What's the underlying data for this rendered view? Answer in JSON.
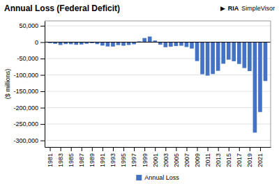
{
  "chart_data": {
    "type": "bar",
    "title": "Annual Loss (Federal Deficit)",
    "y_label": "($ millions)",
    "annotations": [
      "▶",
      "RIA",
      "SimpleVisor"
    ],
    "x": [
      1981,
      1982,
      1983,
      1984,
      1985,
      1986,
      1987,
      1988,
      1989,
      1990,
      1991,
      1992,
      1993,
      1994,
      1995,
      1996,
      1997,
      1998,
      1999,
      2000,
      2001,
      2002,
      2003,
      2004,
      2005,
      2006,
      2007,
      2008,
      2009,
      2010,
      2011,
      2012,
      2013,
      2014,
      2015,
      2016,
      2017,
      2018,
      2019,
      2020,
      2021,
      2022
    ],
    "series": [
      {
        "name": "Annual Loss",
        "color": "#4472C4",
        "values": [
          -2800,
          -4900,
          -8400,
          -5700,
          -6200,
          -7800,
          -7000,
          -4700,
          -3100,
          -5900,
          -10200,
          -13100,
          -13300,
          -8700,
          -10700,
          -8500,
          -6300,
          2600,
          12600,
          17200,
          5000,
          -7600,
          -15300,
          -13500,
          -11800,
          -10700,
          -14700,
          -19400,
          -57600,
          -97900,
          -102100,
          -97200,
          -87400,
          -65700,
          -53400,
          -58100,
          -66400,
          -78900,
          -88200,
          -276100,
          -213200,
          -118500
        ]
      }
    ],
    "xlim": [
      1980,
      2023
    ],
    "xticks": [
      1981,
      1983,
      1985,
      1987,
      1989,
      1991,
      1993,
      1995,
      1997,
      1999,
      2001,
      2003,
      2005,
      2007,
      2009,
      2011,
      2013,
      2015,
      2017,
      2019,
      2021
    ],
    "ylim": [
      -320000,
      65000
    ],
    "yticks": [
      {
        "value": 50000,
        "label": "50,000"
      },
      0,
      {
        "value": -50000,
        "label": "-50,000"
      },
      {
        "value": -100000,
        "label": "-100,000"
      },
      {
        "value": -150000,
        "label": "-150,000"
      },
      {
        "value": -200000,
        "label": "-200,000"
      },
      {
        "value": -250000,
        "label": "-250,000"
      },
      {
        "value": -300000,
        "label": "-300,000"
      }
    ],
    "grid": true,
    "legend": "bottom"
  }
}
